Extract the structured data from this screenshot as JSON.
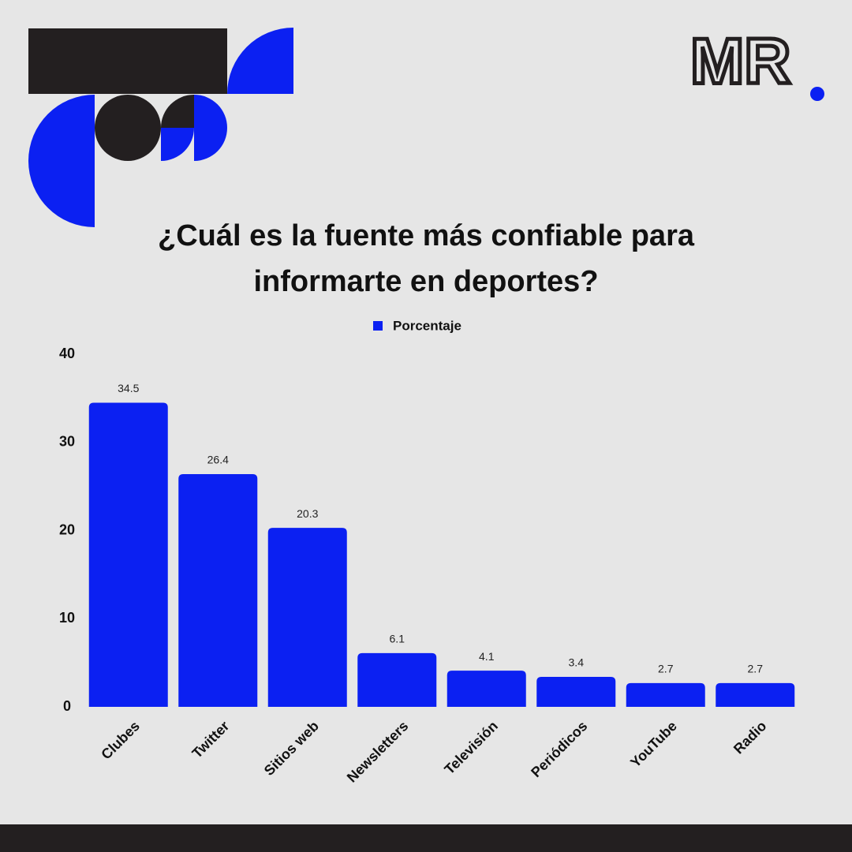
{
  "logo": "MR",
  "chart_data": {
    "type": "bar",
    "title": "¿Cuál es la fuente más confiable para informarte en deportes?",
    "categories": [
      "Clubes",
      "Twitter",
      "Sitios web",
      "Newsletters",
      "Televisión",
      "Periódicos",
      "YouTube",
      "Radio"
    ],
    "series": [
      {
        "name": "Porcentaje",
        "color": "#0b20f2",
        "values": [
          34.5,
          26.4,
          20.3,
          6.1,
          4.1,
          3.4,
          2.7,
          2.7
        ]
      }
    ],
    "ylim": [
      0,
      40
    ],
    "yticks": [
      0,
      10,
      20,
      30,
      40
    ],
    "grid": false,
    "legend": "top"
  }
}
